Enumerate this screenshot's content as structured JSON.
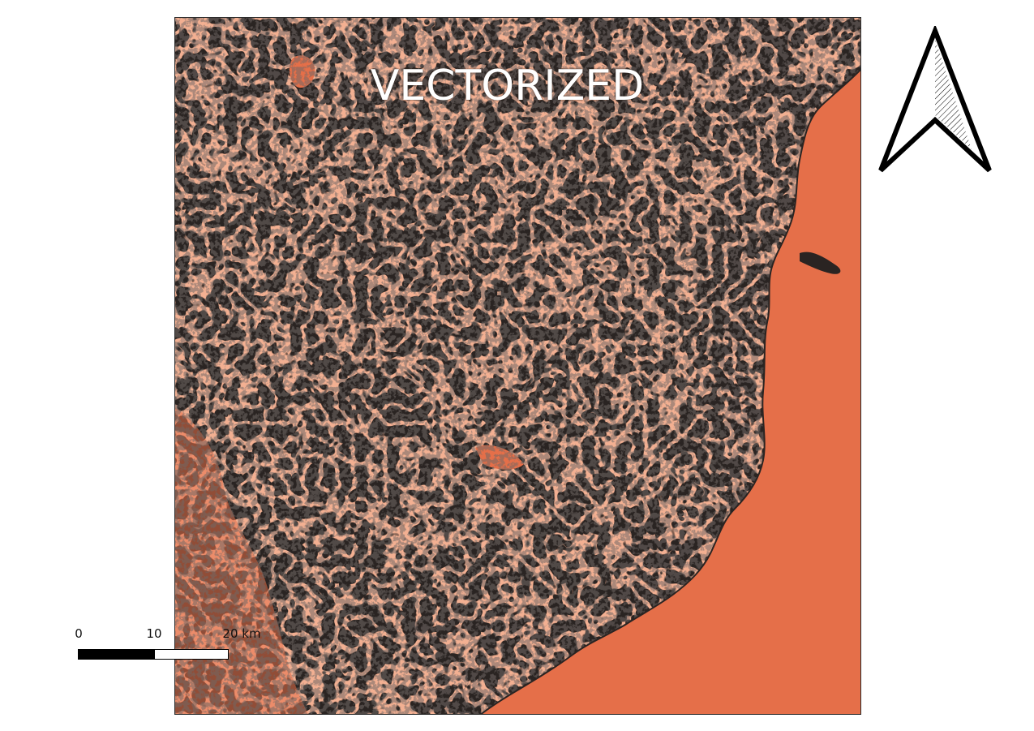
{
  "map": {
    "title": "VECTORIZED",
    "colors": {
      "land_fill": "#e56f49",
      "vector_lines": "#2a2422",
      "sea": "#e56f49",
      "frame": "#2b2b2b"
    }
  },
  "north_arrow": {
    "icon": "north-arrow-icon"
  },
  "scale_bar": {
    "labels": [
      "0",
      "10",
      "20 km"
    ]
  }
}
